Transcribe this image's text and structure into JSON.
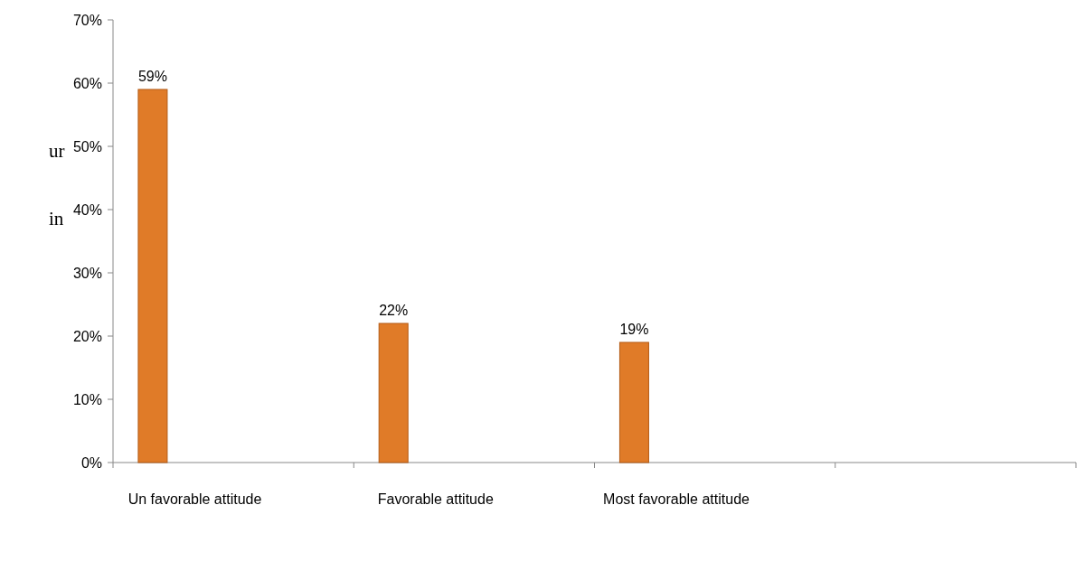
{
  "chart_data": {
    "type": "bar",
    "categories": [
      "Un favorable attitude",
      "Favorable attitude",
      "Most favorable attitude",
      null
    ],
    "values": [
      59,
      22,
      19,
      null
    ],
    "color": "#e07b28",
    "ylim": [
      0,
      70
    ],
    "yticks": [
      {
        "value": 0,
        "label": "0%"
      },
      {
        "value": 10,
        "label": "10%"
      },
      {
        "value": 20,
        "label": "20%"
      },
      {
        "value": 30,
        "label": "30%"
      },
      {
        "value": 40,
        "label": "40%"
      },
      {
        "value": 50,
        "label": "50%"
      },
      {
        "value": 60,
        "label": "60%"
      },
      {
        "value": 70,
        "label": "70%"
      }
    ],
    "data_labels": true,
    "value_labels": [
      "59%",
      "22%",
      "19%",
      null
    ],
    "annotations": [
      "ur",
      "in"
    ]
  }
}
